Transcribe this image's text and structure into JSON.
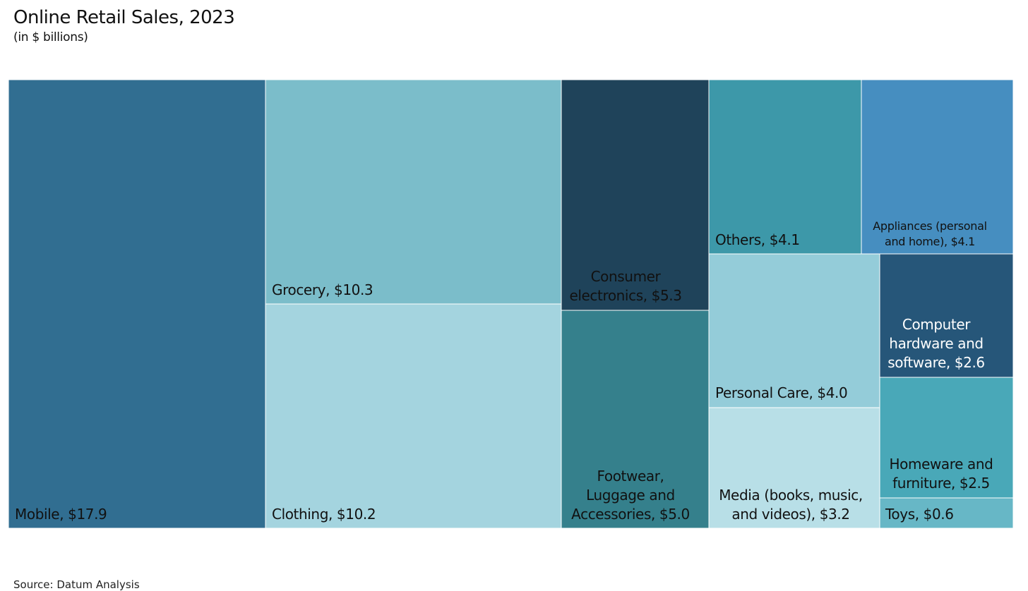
{
  "header": {
    "title": "Online Retail Sales, 2023",
    "subtitle": "(in $ billions)"
  },
  "footer": {
    "source": "Source: Datum Analysis"
  },
  "chart_data": {
    "type": "treemap",
    "title": "Online Retail Sales, 2023",
    "subtitle": "(in $ billions)",
    "unit": "$ billions",
    "items": [
      {
        "name": "Mobile",
        "value": 17.9,
        "label_lines": [
          "Mobile, $17.9"
        ],
        "color": "#316e91",
        "label_color": "#111111"
      },
      {
        "name": "Grocery",
        "value": 10.3,
        "label_lines": [
          "Grocery, $10.3"
        ],
        "color": "#7bbdca",
        "label_color": "#111111"
      },
      {
        "name": "Clothing",
        "value": 10.2,
        "label_lines": [
          "Clothing, $10.2"
        ],
        "color": "#a4d4df",
        "label_color": "#111111"
      },
      {
        "name": "Consumer electronics",
        "value": 5.3,
        "label_lines": [
          "Consumer",
          "electronics, $5.3"
        ],
        "color": "#1f435a",
        "label_color": "#111111"
      },
      {
        "name": "Footwear, Luggage and Accessories",
        "value": 5.0,
        "label_lines": [
          "Footwear,",
          "Luggage and",
          "Accessories, $5.0"
        ],
        "color": "#35808c",
        "label_color": "#111111"
      },
      {
        "name": "Others",
        "value": 4.1,
        "label_lines": [
          "Others, $4.1"
        ],
        "color": "#3d98a9",
        "label_color": "#111111"
      },
      {
        "name": "Appliances (personal and home)",
        "value": 4.1,
        "label_lines": [
          "Appliances (personal",
          "and home), $4.1"
        ],
        "color": "#468ec0",
        "label_color": "#111111"
      },
      {
        "name": "Personal Care",
        "value": 4.0,
        "label_lines": [
          "Personal Care, $4.0"
        ],
        "color": "#94ccd9",
        "label_color": "#111111"
      },
      {
        "name": "Media (books, music, and videos)",
        "value": 3.2,
        "label_lines": [
          "Media (books, music,",
          "and videos), $3.2"
        ],
        "color": "#b8dfe7",
        "label_color": "#111111"
      },
      {
        "name": "Computer hardware and software",
        "value": 2.6,
        "label_lines": [
          "Computer",
          "hardware and",
          "software, $2.6"
        ],
        "color": "#265679",
        "label_color": "#ffffff"
      },
      {
        "name": "Homeware and furniture",
        "value": 2.5,
        "label_lines": [
          "Homeware and",
          "furniture, $2.5"
        ],
        "color": "#49a8b8",
        "label_color": "#111111"
      },
      {
        "name": "Toys",
        "value": 0.6,
        "label_lines": [
          "Toys, $0.6"
        ],
        "color": "#67b7c6",
        "label_color": "#111111"
      }
    ]
  }
}
